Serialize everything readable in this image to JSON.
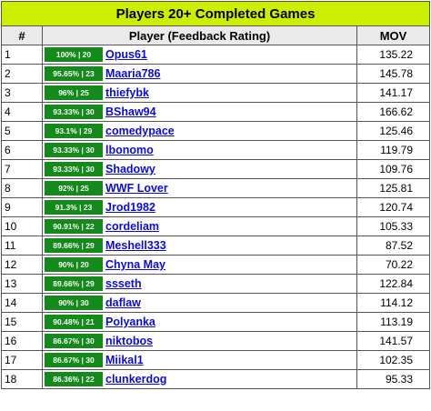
{
  "title": "Players 20+ Completed Games",
  "headers": {
    "rank": "#",
    "player": "Player (Feedback Rating)",
    "mov": "MOV"
  },
  "colors": {
    "title_bg": "#ccee00",
    "header_bg": "#eaeaea",
    "badge_bg": "#138a1a",
    "link": "#0b0bd6"
  },
  "rows": [
    {
      "rank": "1",
      "rating": "100% | 20",
      "name": "Opus61",
      "mov": "135.22"
    },
    {
      "rank": "2",
      "rating": "95.65% | 23",
      "name": "Maaria786",
      "mov": "145.78"
    },
    {
      "rank": "3",
      "rating": "96% | 25",
      "name": "thiefybk",
      "mov": "141.17"
    },
    {
      "rank": "4",
      "rating": "93.33% | 30",
      "name": "BShaw94",
      "mov": "166.62"
    },
    {
      "rank": "5",
      "rating": "93.1% | 29",
      "name": "comedypace",
      "mov": "125.46"
    },
    {
      "rank": "6",
      "rating": "93.33% | 30",
      "name": "lbonomo",
      "mov": "119.79"
    },
    {
      "rank": "7",
      "rating": "93.33% | 30",
      "name": "Shadowy",
      "mov": "109.76"
    },
    {
      "rank": "8",
      "rating": "92% | 25",
      "name": "WWF Lover",
      "mov": "125.81"
    },
    {
      "rank": "9",
      "rating": "91.3% | 23",
      "name": "Jrod1982",
      "mov": "120.74"
    },
    {
      "rank": "10",
      "rating": "90.91% | 22",
      "name": "cordeliam",
      "mov": "105.33"
    },
    {
      "rank": "11",
      "rating": "89.66% | 29",
      "name": "Meshell333",
      "mov": "87.52"
    },
    {
      "rank": "12",
      "rating": "90% | 20",
      "name": "Chyna May",
      "mov": "70.22"
    },
    {
      "rank": "13",
      "rating": "89.66% | 29",
      "name": "ssseth",
      "mov": "122.84"
    },
    {
      "rank": "14",
      "rating": "90% | 30",
      "name": "daflaw",
      "mov": "114.12"
    },
    {
      "rank": "15",
      "rating": "90.48% | 21",
      "name": "Polyanka",
      "mov": "113.19"
    },
    {
      "rank": "16",
      "rating": "86.67% | 30",
      "name": "niktobos",
      "mov": "141.57"
    },
    {
      "rank": "17",
      "rating": "86.67% | 30",
      "name": "Miikal1",
      "mov": "102.35"
    },
    {
      "rank": "18",
      "rating": "86.36% | 22",
      "name": "clunkerdog",
      "mov": "95.33"
    }
  ]
}
